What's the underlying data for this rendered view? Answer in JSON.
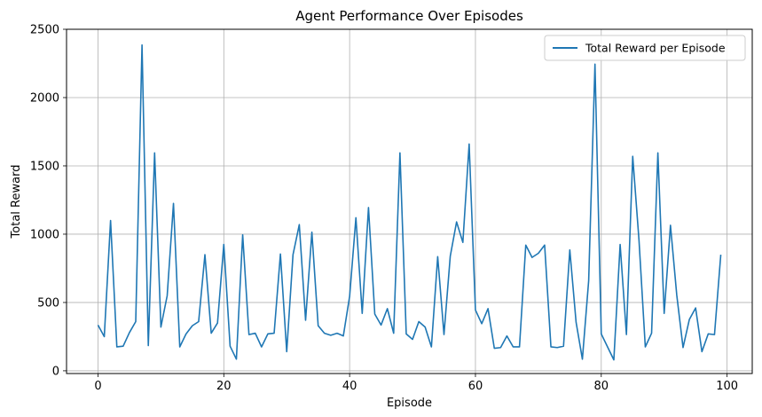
{
  "chart_data": {
    "type": "line",
    "title": "Agent Performance Over Episodes",
    "xlabel": "Episode",
    "ylabel": "Total Reward",
    "xlim": [
      -5,
      104
    ],
    "ylim": [
      -20,
      2500
    ],
    "xticks": [
      0,
      20,
      40,
      60,
      80,
      100
    ],
    "yticks": [
      0,
      500,
      1000,
      1500,
      2000,
      2500
    ],
    "grid": true,
    "legend_position": "top-right",
    "series": [
      {
        "name": "Total Reward per Episode",
        "color": "#1f77b4",
        "x": [
          0,
          1,
          2,
          3,
          4,
          5,
          6,
          7,
          8,
          9,
          10,
          11,
          12,
          13,
          14,
          15,
          16,
          17,
          18,
          19,
          20,
          21,
          22,
          23,
          24,
          25,
          26,
          27,
          28,
          29,
          30,
          31,
          32,
          33,
          34,
          35,
          36,
          37,
          38,
          39,
          40,
          41,
          42,
          43,
          44,
          45,
          46,
          47,
          48,
          49,
          50,
          51,
          52,
          53,
          54,
          55,
          56,
          57,
          58,
          59,
          60,
          61,
          62,
          63,
          64,
          65,
          66,
          67,
          68,
          69,
          70,
          71,
          72,
          73,
          74,
          75,
          76,
          77,
          78,
          79,
          80,
          81,
          82,
          83,
          84,
          85,
          86,
          87,
          88,
          89,
          90,
          91,
          92,
          93,
          94,
          95,
          96,
          97,
          98,
          99
        ],
        "values": [
          335,
          250,
          1100,
          175,
          180,
          280,
          360,
          2385,
          185,
          1595,
          320,
          550,
          1225,
          175,
          270,
          330,
          360,
          850,
          275,
          350,
          925,
          180,
          85,
          995,
          265,
          275,
          175,
          270,
          275,
          855,
          140,
          850,
          1070,
          370,
          1015,
          330,
          275,
          260,
          275,
          255,
          545,
          1120,
          420,
          1195,
          415,
          335,
          455,
          275,
          1595,
          270,
          230,
          360,
          320,
          175,
          835,
          265,
          840,
          1090,
          940,
          1660,
          445,
          345,
          455,
          165,
          170,
          255,
          175,
          175,
          920,
          830,
          860,
          920,
          175,
          170,
          180,
          885,
          355,
          85,
          660,
          2245,
          270,
          175,
          80,
          925,
          265,
          1570,
          955,
          175,
          275,
          1595,
          420,
          1065,
          555,
          170,
          375,
          460,
          140,
          270,
          265,
          850
        ]
      }
    ]
  }
}
